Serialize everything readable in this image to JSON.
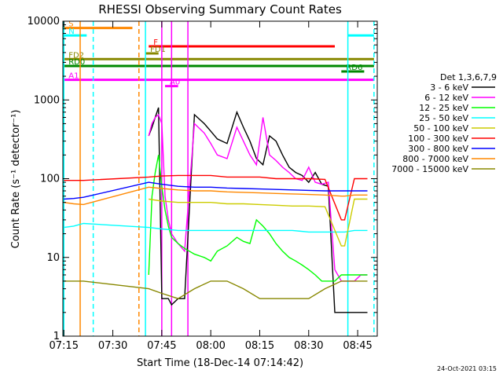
{
  "chart_data": {
    "type": "line",
    "title": "RHESSI Observing Summary Count Rates",
    "xlabel": "Start Time (18-Dec-14 07:14:42)",
    "ylabel": "Count Rate (s⁻¹ detector⁻¹)",
    "x_ticks": [
      "07:15",
      "07:30",
      "07:45",
      "08:00",
      "08:15",
      "08:30",
      "08:45"
    ],
    "x_range": [
      "07:14:42",
      "08:51:00"
    ],
    "y_scale": "log",
    "y_ticks": [
      "1",
      "10",
      "100",
      "1000",
      "10000"
    ],
    "ylim": [
      1,
      10000
    ],
    "legend_title": "Det 1,3,6,7,9",
    "legend_position": "right",
    "series": [
      {
        "name": "3 - 6 keV",
        "color": "#000000",
        "x": [
          "07:41",
          "07:42",
          "07:43",
          "07:44",
          "07:45",
          "07:46",
          "07:47",
          "07:48",
          "07:50",
          "07:52",
          "07:55",
          "07:58",
          "08:00",
          "08:02",
          "08:05",
          "08:08",
          "08:10",
          "08:12",
          "08:14",
          "08:16",
          "08:18",
          "08:20",
          "08:22",
          "08:24",
          "08:26",
          "08:28",
          "08:30",
          "08:32",
          "08:34",
          "08:36",
          "08:38",
          "08:40",
          "08:42",
          "08:44",
          "08:46",
          "08:48"
        ],
        "values": [
          350,
          450,
          600,
          800,
          3,
          3,
          3,
          2.5,
          3,
          3,
          650,
          500,
          400,
          320,
          280,
          700,
          450,
          300,
          180,
          150,
          350,
          300,
          200,
          140,
          120,
          110,
          90,
          120,
          85,
          80,
          2,
          2,
          2,
          2,
          2,
          2
        ]
      },
      {
        "name": "6 - 12 keV",
        "color": "#ff00ff",
        "x": [
          "07:41",
          "07:42",
          "07:43",
          "07:44",
          "07:45",
          "07:46",
          "07:47",
          "07:48",
          "07:50",
          "07:52",
          "07:55",
          "07:58",
          "08:00",
          "08:02",
          "08:05",
          "08:08",
          "08:10",
          "08:12",
          "08:14",
          "08:16",
          "08:18",
          "08:20",
          "08:22",
          "08:24",
          "08:26",
          "08:28",
          "08:30",
          "08:32",
          "08:34",
          "08:36",
          "08:38",
          "08:40",
          "08:42",
          "08:44",
          "08:46",
          "08:48"
        ],
        "values": [
          350,
          500,
          600,
          650,
          500,
          60,
          30,
          20,
          15,
          12,
          500,
          380,
          280,
          200,
          180,
          450,
          300,
          200,
          150,
          600,
          200,
          170,
          140,
          120,
          100,
          95,
          140,
          90,
          85,
          90,
          7,
          5,
          5,
          5,
          6,
          6
        ]
      },
      {
        "name": "12 - 25 keV",
        "color": "#00ff00",
        "x": [
          "07:41",
          "07:42",
          "07:43",
          "07:44",
          "07:45",
          "07:46",
          "07:47",
          "07:48",
          "07:50",
          "07:52",
          "07:55",
          "07:58",
          "08:00",
          "08:02",
          "08:05",
          "08:08",
          "08:10",
          "08:12",
          "08:14",
          "08:16",
          "08:18",
          "08:20",
          "08:22",
          "08:24",
          "08:26",
          "08:28",
          "08:30",
          "08:32",
          "08:34",
          "08:36",
          "08:38",
          "08:40",
          "08:42",
          "08:44",
          "08:46",
          "08:48"
        ],
        "values": [
          6,
          60,
          120,
          200,
          80,
          40,
          25,
          18,
          15,
          13,
          11,
          10,
          9,
          12,
          14,
          18,
          16,
          15,
          30,
          25,
          20,
          15,
          12,
          10,
          9,
          8,
          7,
          6,
          5,
          5,
          5,
          6,
          6,
          6,
          6,
          6
        ]
      },
      {
        "name": "25 - 50 keV",
        "color": "#00ffff",
        "x": [
          "07:15",
          "07:18",
          "07:21",
          "07:41",
          "07:45",
          "07:50",
          "07:55",
          "08:00",
          "08:05",
          "08:10",
          "08:15",
          "08:20",
          "08:25",
          "08:30",
          "08:35",
          "08:40",
          "08:41",
          "08:44",
          "08:48"
        ],
        "values": [
          24,
          25,
          27,
          24,
          23,
          22,
          22,
          22,
          22,
          22,
          22,
          22,
          22,
          21,
          21,
          21,
          21,
          22,
          22
        ]
      },
      {
        "name": "50 - 100 keV",
        "color": "#cccc00",
        "x": [
          "07:41",
          "07:45",
          "07:50",
          "07:55",
          "08:00",
          "08:05",
          "08:10",
          "08:15",
          "08:20",
          "08:25",
          "08:30",
          "08:35",
          "08:40",
          "08:41",
          "08:44",
          "08:48"
        ],
        "values": [
          55,
          52,
          50,
          50,
          50,
          48,
          48,
          47,
          46,
          45,
          45,
          44,
          14,
          14,
          55,
          55
        ]
      },
      {
        "name": "100 - 300 keV",
        "color": "#ff0000",
        "x": [
          "07:15",
          "07:18",
          "07:21",
          "07:41",
          "07:45",
          "07:50",
          "07:55",
          "08:00",
          "08:05",
          "08:10",
          "08:15",
          "08:20",
          "08:25",
          "08:30",
          "08:35",
          "08:40",
          "08:41",
          "08:44",
          "08:48"
        ],
        "values": [
          95,
          95,
          95,
          105,
          108,
          110,
          110,
          110,
          105,
          105,
          105,
          100,
          100,
          100,
          98,
          30,
          30,
          100,
          100
        ]
      },
      {
        "name": "300 - 800 keV",
        "color": "#0000ff",
        "x": [
          "07:15",
          "07:18",
          "07:21",
          "07:41",
          "07:45",
          "07:50",
          "07:55",
          "08:00",
          "08:05",
          "08:10",
          "08:15",
          "08:20",
          "08:25",
          "08:30",
          "08:35",
          "08:40",
          "08:41",
          "08:44",
          "08:48"
        ],
        "values": [
          55,
          56,
          58,
          90,
          85,
          80,
          78,
          78,
          76,
          75,
          74,
          73,
          72,
          71,
          70,
          70,
          70,
          70,
          70
        ]
      },
      {
        "name": "800 - 7000 keV",
        "color": "#ff8800",
        "x": [
          "07:15",
          "07:18",
          "07:21",
          "07:41",
          "07:45",
          "07:50",
          "07:55",
          "08:00",
          "08:05",
          "08:10",
          "08:15",
          "08:20",
          "08:25",
          "08:30",
          "08:35",
          "08:40",
          "08:41",
          "08:44",
          "08:48"
        ],
        "values": [
          50,
          48,
          47,
          78,
          75,
          72,
          70,
          70,
          68,
          67,
          66,
          65,
          64,
          63,
          62,
          60,
          60,
          62,
          62
        ]
      },
      {
        "name": "7000 - 15000 keV",
        "color": "#888800",
        "x": [
          "07:15",
          "07:18",
          "07:21",
          "07:41",
          "07:45",
          "07:50",
          "07:55",
          "08:00",
          "08:05",
          "08:10",
          "08:15",
          "08:20",
          "08:25",
          "08:30",
          "08:35",
          "08:40",
          "08:41",
          "08:44",
          "08:48"
        ],
        "values": [
          5,
          5,
          5,
          4,
          3.5,
          3,
          4,
          5,
          5,
          4,
          3,
          3,
          3,
          3,
          4,
          5,
          5,
          5,
          5
        ]
      }
    ],
    "flags": [
      {
        "label": "S",
        "color": "#ff8800",
        "start": "07:15",
        "end": "07:36",
        "y": 8200
      },
      {
        "label": "N",
        "color": "#00ffff",
        "start": "07:15",
        "end": "07:22",
        "y": 6600
      },
      {
        "label": "F",
        "color": "#ff0000",
        "start": "07:41",
        "end": "08:38",
        "y": 4800
      },
      {
        "label": "FD1",
        "color": "#888800",
        "start": "07:40",
        "end": "07:44",
        "y": 3900
      },
      {
        "label": "FD2",
        "color": "#888800",
        "start": "07:15",
        "end": "08:50",
        "y": 3300
      },
      {
        "label": "RD0",
        "color": "#008800",
        "start": "07:15",
        "end": "08:50",
        "y": 2700
      },
      {
        "label": "RD6",
        "color": "#008800",
        "start": "08:40",
        "end": "08:47",
        "y": 2300
      },
      {
        "label": "A1",
        "color": "#ff00ff",
        "start": "07:15",
        "end": "08:50",
        "y": 1800
      },
      {
        "label": "A0",
        "color": "#ff00ff",
        "start": "07:46",
        "end": "07:50",
        "y": 1500
      },
      {
        "label": "",
        "color": "#00ffff",
        "start": "08:42",
        "end": "08:50",
        "y": 6600
      }
    ],
    "vlines": [
      {
        "time": "07:15",
        "color": "#00ffff",
        "style": "solid"
      },
      {
        "time": "07:20",
        "color": "#ff8800",
        "style": "solid"
      },
      {
        "time": "07:24",
        "color": "#00ffff",
        "style": "dashed"
      },
      {
        "time": "07:38",
        "color": "#ff8800",
        "style": "dashed"
      },
      {
        "time": "07:40",
        "color": "#00ffff",
        "style": "solid"
      },
      {
        "time": "07:45",
        "color": "#ff00ff",
        "style": "solid"
      },
      {
        "time": "07:48",
        "color": "#ff00ff",
        "style": "solid"
      },
      {
        "time": "07:53",
        "color": "#ff00ff",
        "style": "solid"
      },
      {
        "time": "08:42",
        "color": "#00ffff",
        "style": "solid"
      },
      {
        "time": "08:50",
        "color": "#00ffff",
        "style": "dashed"
      }
    ]
  },
  "stamp": "24-Oct-2021 03:15"
}
